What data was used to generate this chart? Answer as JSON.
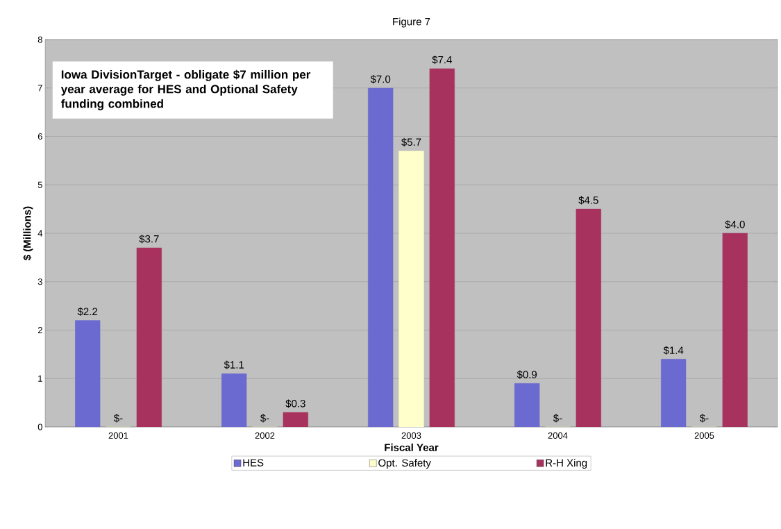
{
  "chart_data": {
    "type": "bar",
    "title": "Figure 7",
    "xlabel": "Fiscal Year",
    "ylabel": "$ (Millions)",
    "categories": [
      "2001",
      "2002",
      "2003",
      "2004",
      "2005"
    ],
    "series": [
      {
        "name": "HES",
        "color": "#6a6ad0",
        "values": [
          2.2,
          1.1,
          7.0,
          0.9,
          1.4
        ],
        "value_labels": [
          "$2.2",
          "$1.1",
          "$7.0",
          "$0.9",
          "$1.4"
        ]
      },
      {
        "name": "Opt. Safety",
        "color": "#ffffcc",
        "values": [
          0,
          0,
          5.7,
          0,
          0
        ],
        "value_labels": [
          "$-",
          "$-",
          "$5.7",
          "$-",
          "$-"
        ]
      },
      {
        "name": "R-H Xing",
        "color": "#a8325e",
        "values": [
          3.7,
          0.3,
          7.4,
          4.5,
          4.0
        ],
        "value_labels": [
          "$3.7",
          "$0.3",
          "$7.4",
          "$4.5",
          "$4.0"
        ]
      }
    ],
    "ylim": [
      0,
      8
    ],
    "yticks": [
      0,
      1,
      2,
      3,
      4,
      5,
      6,
      7,
      8
    ],
    "grid": "y",
    "legend": "bottom",
    "annotations": [
      "Iowa DivisionTarget -  obligate $7 million per year average for HES and Optional Safety funding combined"
    ]
  }
}
